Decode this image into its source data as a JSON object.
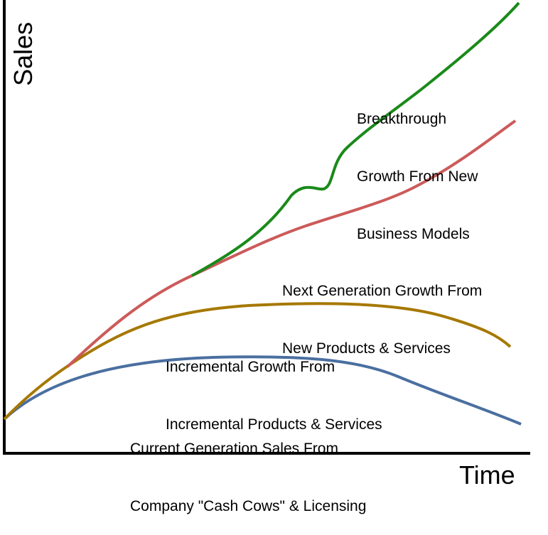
{
  "axes": {
    "y_label": "Sales",
    "x_label": "Time"
  },
  "curves": [
    {
      "key": "current",
      "label_lines": [
        "Current Generation Sales From",
        "Company \"Cash Cows\" & Licensing"
      ],
      "color": "#4a6fa0"
    },
    {
      "key": "incremental",
      "label_lines": [
        "Incremental Growth From",
        "Incremental Products & Services"
      ],
      "color": "#a67800"
    },
    {
      "key": "next_gen",
      "label_lines": [
        "Next Generation Growth From",
        "New Products & Services"
      ],
      "color": "#cc5a5a"
    },
    {
      "key": "breakthrough",
      "label_lines": [
        "Breakthrough",
        "Growth From New",
        "Business Models"
      ],
      "color": "#1a8a1a"
    }
  ]
}
